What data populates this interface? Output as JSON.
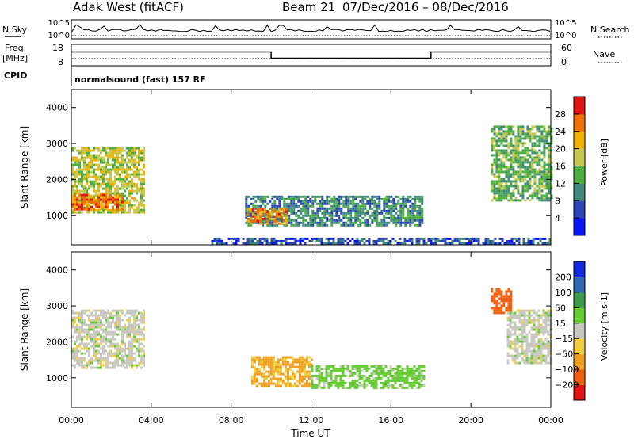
{
  "header": {
    "title": "Adak West (fitACF)",
    "beam": "Beam 21",
    "date_range": "07/Dec/2016 – 08/Dec/2016"
  },
  "noise_panel": {
    "left_label": "N.Sky",
    "right_label": "N.Search",
    "ticks_left": [
      "10^5",
      "10^0"
    ],
    "ticks_right": [
      "10^5",
      "10^0"
    ]
  },
  "freq_panel": {
    "left_label_line1": "Freq.",
    "left_label_line2": "[MHz]",
    "right_label": "Nave",
    "ticks_left": [
      "18",
      "8"
    ],
    "ticks_right": [
      "60",
      "0"
    ],
    "freq_high_mhz": 14.5,
    "freq_low_mhz": 11.5,
    "low_interval_hours": [
      10.0,
      18.0
    ]
  },
  "cpid_panel": {
    "label": "CPID",
    "mode": "normalsound (fast) 157 RF"
  },
  "power_panel": {
    "ylabel": "Slant Range [km]",
    "cbar_label": "Power [dB]",
    "cbar_ticks": [
      "4",
      "8",
      "12",
      "16",
      "20",
      "24",
      "28"
    ],
    "cbar_colors": [
      "#0a14ff",
      "#2a45b8",
      "#3f8a7a",
      "#4cb040",
      "#c8c850",
      "#f0b000",
      "#f07000",
      "#e01414"
    ]
  },
  "velocity_panel": {
    "ylabel": "Slant Range [km]",
    "cbar_label": "Velocity [m s-1]",
    "cbar_ticks": [
      "200",
      "100",
      "50",
      "15",
      "−15",
      "−50",
      "−100",
      "−200"
    ],
    "cbar_colors": [
      "#1428e0",
      "#2e6ab0",
      "#3c9a4c",
      "#66cc33",
      "#c8c8c0",
      "#f0d040",
      "#f0a020",
      "#f06010",
      "#e01414"
    ]
  },
  "x_axis": {
    "label": "Time UT",
    "ticks": [
      "00:00",
      "04:00",
      "08:00",
      "12:00",
      "16:00",
      "20:00",
      "00:00"
    ]
  },
  "y_axis": {
    "ticks": [
      "1000",
      "2000",
      "3000",
      "4000"
    ],
    "range_km": [
      180,
      4500
    ]
  },
  "chart_data": {
    "type": "heatmap",
    "x_range_hours": [
      0,
      24
    ],
    "y_range_km": [
      180,
      4500
    ],
    "power_regions": [
      {
        "t0": 0.0,
        "t1": 3.6,
        "r0": 1100,
        "r1": 2900,
        "level_db": 18
      },
      {
        "t0": 0.0,
        "t1": 2.6,
        "r0": 1150,
        "r1": 1600,
        "level_db": 26
      },
      {
        "t0": 8.7,
        "t1": 17.6,
        "r0": 700,
        "r1": 1550,
        "level_db": 10
      },
      {
        "t0": 8.8,
        "t1": 10.8,
        "r0": 750,
        "r1": 1200,
        "level_db": 24
      },
      {
        "t0": 7.0,
        "t1": 24.0,
        "r0": 200,
        "r1": 380,
        "level_db": 6
      },
      {
        "t0": 21.0,
        "t1": 24.0,
        "r0": 1400,
        "r1": 3500,
        "level_db": 14
      }
    ],
    "velocity_regions": [
      {
        "t0": 0.0,
        "t1": 3.6,
        "r0": 1300,
        "r1": 2900,
        "velocity_ms": 0
      },
      {
        "t0": 9.0,
        "t1": 12.0,
        "r0": 750,
        "r1": 1600,
        "velocity_ms": -60
      },
      {
        "t0": 12.0,
        "t1": 17.6,
        "r0": 700,
        "r1": 1350,
        "velocity_ms": 30
      },
      {
        "t0": 21.8,
        "t1": 24.0,
        "r0": 1400,
        "r1": 2900,
        "velocity_ms": 0
      },
      {
        "t0": 21.0,
        "t1": 22.0,
        "r0": 2800,
        "r1": 3500,
        "velocity_ms": -150
      }
    ]
  }
}
